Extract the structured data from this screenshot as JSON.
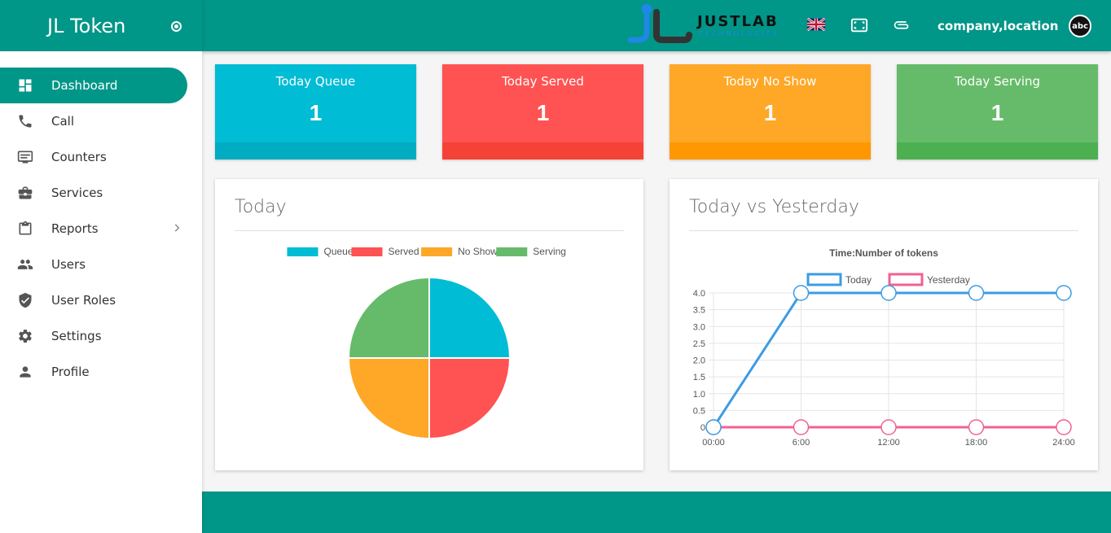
{
  "app": {
    "title": "JL Token"
  },
  "sidebar": {
    "items": [
      {
        "label": "Dashboard",
        "icon": "dashboard-icon",
        "active": true
      },
      {
        "label": "Call",
        "icon": "phone-icon"
      },
      {
        "label": "Counters",
        "icon": "counter-icon"
      },
      {
        "label": "Services",
        "icon": "briefcase-icon"
      },
      {
        "label": "Reports",
        "icon": "clipboard-icon",
        "has_submenu": true
      },
      {
        "label": "Users",
        "icon": "users-icon"
      },
      {
        "label": "User Roles",
        "icon": "shield-icon"
      },
      {
        "label": "Settings",
        "icon": "gear-icon"
      },
      {
        "label": "Profile",
        "icon": "person-icon"
      }
    ]
  },
  "topbar": {
    "logo_text": "JUSTLAB",
    "logo_sub": "TECHNOLOGIES",
    "company": "company,location",
    "avatar": "abc"
  },
  "stats": [
    {
      "title": "Today Queue",
      "value": "1",
      "color": "#00bcd4",
      "bar": "#00acc1"
    },
    {
      "title": "Today Served",
      "value": "1",
      "color": "#ff5252",
      "bar": "#f44336"
    },
    {
      "title": "Today No Show",
      "value": "1",
      "color": "#ffa726",
      "bar": "#ff9800"
    },
    {
      "title": "Today Serving",
      "value": "1",
      "color": "#66bb6a",
      "bar": "#4caf50"
    }
  ],
  "cards": {
    "today_title": "Today",
    "compare_title": "Today vs Yesterday"
  },
  "chart_data": [
    {
      "type": "pie",
      "title": "",
      "labels": [
        "Queue",
        "Served",
        "No Show",
        "Serving"
      ],
      "values": [
        1,
        1,
        1,
        1
      ],
      "colors": [
        "#00bcd4",
        "#ff5252",
        "#ffa726",
        "#66bb6a"
      ],
      "legend": "top"
    },
    {
      "type": "line",
      "title": "Time:Number of tokens",
      "categories": [
        "00:00",
        "6:00",
        "12:00",
        "18:00",
        "24:00"
      ],
      "series": [
        {
          "name": "Today",
          "values": [
            0,
            4,
            4,
            4,
            4
          ],
          "color": "#3d9be3"
        },
        {
          "name": "Yesterday",
          "values": [
            0,
            0,
            0,
            0,
            0
          ],
          "color": "#f06292"
        }
      ],
      "ylim": [
        0,
        4
      ],
      "yticks": [
        "0",
        "0.5",
        "1.0",
        "1.5",
        "2.0",
        "2.5",
        "3.0",
        "3.5",
        "4.0"
      ],
      "grid": true,
      "legend": "top"
    }
  ]
}
